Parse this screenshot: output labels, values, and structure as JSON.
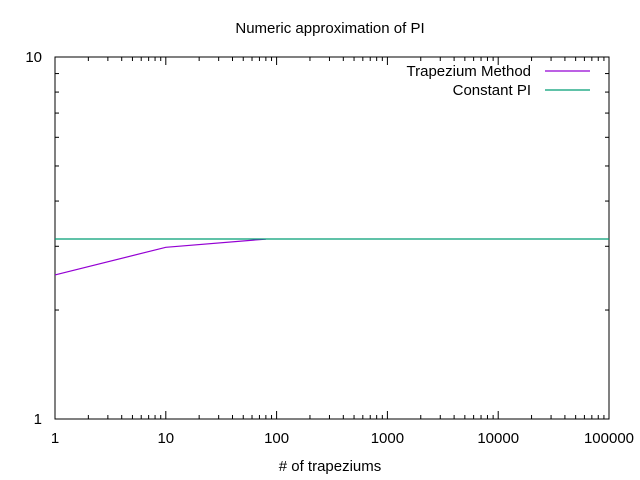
{
  "chart_data": {
    "type": "line",
    "title": "Numeric approximation of PI",
    "xlabel": "# of trapeziums",
    "ylabel": "",
    "x_scale": "log",
    "y_scale": "log",
    "xlim": [
      1,
      100000
    ],
    "ylim": [
      1,
      10
    ],
    "grid": false,
    "legend_position": "top-right",
    "x_ticks": [
      1,
      10,
      100,
      1000,
      10000,
      100000
    ],
    "x_tick_labels": [
      "1",
      "10",
      "100",
      "1000",
      "10000",
      "100000"
    ],
    "y_ticks": [
      1,
      10
    ],
    "y_tick_labels": [
      "1",
      "10"
    ],
    "series": [
      {
        "name": "Trapezium Method",
        "color": "#9400d3",
        "x": [
          1,
          10,
          80
        ],
        "y": [
          2.5,
          2.98,
          3.14
        ]
      },
      {
        "name": "Constant PI",
        "color": "#009e73",
        "x": [
          1,
          100000
        ],
        "y": [
          3.14159,
          3.14159
        ]
      }
    ]
  }
}
